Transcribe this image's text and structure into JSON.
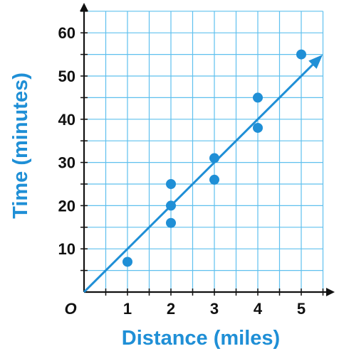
{
  "colors": {
    "accent": "#1f8fd6",
    "grid": "#5fc0ee",
    "axis": "#111111"
  },
  "chart_data": {
    "type": "scatter",
    "xlabel": "Distance (miles)",
    "ylabel": "Time (minutes)",
    "origin_label": "O",
    "x_ticks": [
      1,
      2,
      3,
      4,
      5
    ],
    "y_ticks": [
      10,
      20,
      30,
      40,
      50,
      60
    ],
    "xlim": [
      0,
      5.5
    ],
    "ylim": [
      0,
      65
    ],
    "grid": true,
    "points": [
      {
        "x": 1,
        "y": 7
      },
      {
        "x": 2,
        "y": 16
      },
      {
        "x": 2,
        "y": 20
      },
      {
        "x": 2,
        "y": 25
      },
      {
        "x": 3,
        "y": 26
      },
      {
        "x": 3,
        "y": 31
      },
      {
        "x": 4,
        "y": 38
      },
      {
        "x": 4,
        "y": 45
      },
      {
        "x": 5,
        "y": 55
      }
    ],
    "trend_line": {
      "x": [
        0,
        5.4
      ],
      "y": [
        0,
        54
      ]
    }
  }
}
